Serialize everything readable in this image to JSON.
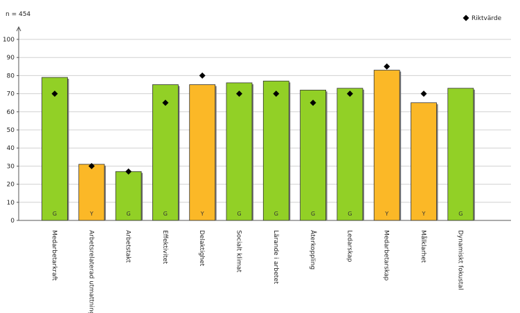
{
  "chart_data": {
    "type": "bar",
    "sample_label": "n = 454",
    "legend": {
      "label": "Riktvärde",
      "placement": "top-right",
      "marker": "diamond"
    },
    "ylim": [
      0,
      100
    ],
    "yticks": [
      "0",
      "10",
      "20",
      "30",
      "40",
      "50",
      "60",
      "70",
      "80",
      "90",
      "100"
    ],
    "grid": true,
    "categories": [
      "Medarbetarkraft",
      "Arbetsrelaterad utmattning",
      "Arbetstakt",
      "Effektivitet",
      "Delaktighet",
      "Socialt klimat",
      "Lärande i arbetet",
      "Återkoppling",
      "Ledarskap",
      "Medarbetarskap",
      "Målklarhet",
      "Dynamiskt fokustal"
    ],
    "values": [
      79,
      31,
      27,
      75,
      75,
      76,
      77,
      72,
      73,
      83,
      65,
      73
    ],
    "codes": [
      "G",
      "Y",
      "G",
      "G",
      "Y",
      "G",
      "G",
      "G",
      "G",
      "Y",
      "Y",
      "G"
    ],
    "targets": [
      70,
      30,
      27,
      65,
      80,
      70,
      70,
      65,
      70,
      85,
      70,
      null
    ],
    "colors": {
      "G": "#92d026",
      "Y": "#fbb827",
      "marker": "#000000",
      "grid": "#d0d0d0",
      "axis": "#555555"
    }
  }
}
